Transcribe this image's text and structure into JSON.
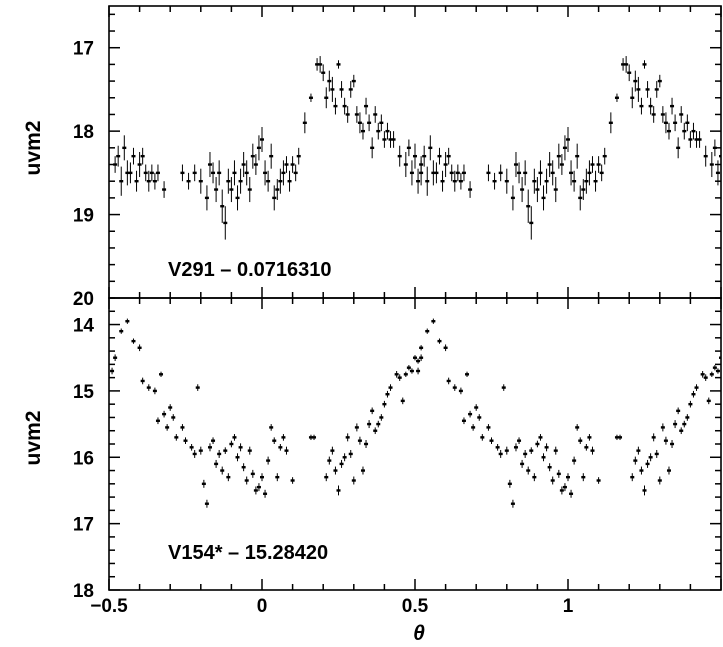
{
  "chart_data": [
    {
      "type": "scatter",
      "panel": "top",
      "title": "",
      "label": "V291 – 0.0716310",
      "xlabel": "θ",
      "ylabel": "uvm2",
      "xlim": [
        -0.5,
        1.5
      ],
      "ylim": [
        20,
        16.5
      ],
      "y_inverted": true,
      "x_ticks": [
        -0.5,
        0,
        0.5,
        1
      ],
      "y_ticks": [
        17,
        18,
        19,
        20
      ],
      "y_tick_labels": [
        "17",
        "18",
        "19",
        "20"
      ],
      "points": [
        [
          -0.48,
          18.4,
          0.2
        ],
        [
          -0.47,
          18.3,
          0.25
        ],
        [
          -0.46,
          18.6,
          0.35
        ],
        [
          -0.45,
          18.2,
          0.3
        ],
        [
          -0.44,
          18.5,
          0.3
        ],
        [
          -0.43,
          18.5,
          0.25
        ],
        [
          -0.42,
          18.3,
          0.2
        ],
        [
          -0.41,
          18.6,
          0.25
        ],
        [
          -0.4,
          18.4,
          0.3
        ],
        [
          -0.39,
          18.3,
          0.2
        ],
        [
          -0.38,
          18.5,
          0.2
        ],
        [
          -0.37,
          18.6,
          0.25
        ],
        [
          -0.36,
          18.5,
          0.2
        ],
        [
          -0.35,
          18.6,
          0.2
        ],
        [
          -0.34,
          18.5,
          0.2
        ],
        [
          -0.32,
          18.7,
          0.2
        ],
        [
          -0.26,
          18.5,
          0.2
        ],
        [
          -0.24,
          18.6,
          0.2
        ],
        [
          -0.22,
          18.5,
          0.2
        ],
        [
          -0.2,
          18.6,
          0.3
        ],
        [
          -0.18,
          18.8,
          0.3
        ],
        [
          -0.17,
          18.4,
          0.3
        ],
        [
          -0.16,
          18.5,
          0.25
        ],
        [
          -0.15,
          18.7,
          0.3
        ],
        [
          -0.14,
          18.5,
          0.3
        ],
        [
          -0.13,
          18.9,
          0.4
        ],
        [
          -0.12,
          19.1,
          0.4
        ],
        [
          -0.11,
          18.6,
          0.3
        ],
        [
          -0.1,
          18.7,
          0.3
        ],
        [
          -0.09,
          18.5,
          0.3
        ],
        [
          -0.08,
          18.8,
          0.3
        ],
        [
          -0.07,
          18.6,
          0.3
        ],
        [
          -0.06,
          18.4,
          0.3
        ],
        [
          -0.05,
          18.5,
          0.3
        ],
        [
          -0.04,
          18.7,
          0.3
        ],
        [
          -0.03,
          18.3,
          0.3
        ],
        [
          -0.02,
          18.4,
          0.25
        ],
        [
          -0.01,
          18.2,
          0.3
        ],
        [
          0.0,
          18.1,
          0.3
        ],
        [
          0.01,
          18.5,
          0.3
        ],
        [
          0.02,
          18.6,
          0.25
        ],
        [
          0.03,
          18.3,
          0.3
        ],
        [
          0.04,
          18.8,
          0.3
        ],
        [
          0.05,
          18.7,
          0.25
        ],
        [
          0.06,
          18.6,
          0.3
        ],
        [
          0.07,
          18.5,
          0.3
        ],
        [
          0.08,
          18.4,
          0.2
        ],
        [
          0.09,
          18.6,
          0.25
        ],
        [
          0.1,
          18.4,
          0.2
        ],
        [
          0.11,
          18.5,
          0.2
        ],
        [
          0.12,
          18.3,
          0.2
        ],
        [
          0.14,
          17.9,
          0.25
        ],
        [
          0.16,
          17.6,
          0.1
        ],
        [
          0.18,
          17.2,
          0.15
        ],
        [
          0.19,
          17.2,
          0.2
        ],
        [
          0.2,
          17.3,
          0.2
        ],
        [
          0.21,
          17.6,
          0.25
        ],
        [
          0.22,
          17.4,
          0.25
        ],
        [
          0.23,
          17.5,
          0.3
        ],
        [
          0.24,
          17.7,
          0.2
        ],
        [
          0.25,
          17.2,
          0.1
        ],
        [
          0.26,
          17.5,
          0.2
        ],
        [
          0.27,
          17.7,
          0.2
        ],
        [
          0.28,
          17.8,
          0.2
        ],
        [
          0.29,
          17.5,
          0.2
        ],
        [
          0.3,
          17.4,
          0.15
        ],
        [
          0.31,
          17.8,
          0.2
        ],
        [
          0.32,
          17.9,
          0.25
        ],
        [
          0.33,
          18.0,
          0.2
        ],
        [
          0.34,
          17.7,
          0.2
        ],
        [
          0.35,
          17.9,
          0.2
        ],
        [
          0.36,
          18.2,
          0.25
        ],
        [
          0.37,
          17.8,
          0.2
        ],
        [
          0.38,
          18.0,
          0.2
        ],
        [
          0.39,
          17.9,
          0.2
        ],
        [
          0.4,
          18.1,
          0.2
        ],
        [
          0.41,
          18.0,
          0.2
        ],
        [
          0.42,
          18.1,
          0.2
        ],
        [
          0.43,
          18.1,
          0.2
        ],
        [
          0.45,
          18.3,
          0.25
        ],
        [
          0.47,
          18.4,
          0.3
        ],
        [
          0.48,
          18.2,
          0.2
        ],
        [
          0.49,
          18.5,
          0.3
        ],
        [
          0.5,
          18.3,
          0.3
        ],
        [
          0.51,
          18.6,
          0.3
        ],
        [
          0.52,
          18.5,
          0.3
        ]
      ]
    },
    {
      "type": "scatter",
      "panel": "bottom",
      "title": "",
      "label": "V154* – 15.28420",
      "xlabel": "θ",
      "ylabel": "uvm2",
      "xlim": [
        -0.5,
        1.5
      ],
      "ylim": [
        18,
        13.6
      ],
      "y_inverted": true,
      "x_ticks": [
        -0.5,
        0,
        0.5,
        1
      ],
      "x_tick_labels": [
        "−0.5",
        "0",
        "0.5",
        "1"
      ],
      "y_ticks": [
        14,
        15,
        16,
        17,
        18
      ],
      "y_tick_labels": [
        "14",
        "15",
        "16",
        "17",
        "18"
      ],
      "points": [
        [
          -0.49,
          14.7,
          0.1
        ],
        [
          -0.48,
          14.5,
          0.1
        ],
        [
          -0.46,
          14.1,
          0.08
        ],
        [
          -0.44,
          13.95,
          0.08
        ],
        [
          -0.42,
          14.25,
          0.08
        ],
        [
          -0.4,
          14.35,
          0.1
        ],
        [
          -0.39,
          14.85,
          0.1
        ],
        [
          -0.37,
          14.95,
          0.1
        ],
        [
          -0.35,
          15.0,
          0.1
        ],
        [
          -0.34,
          15.45,
          0.1
        ],
        [
          -0.33,
          14.75,
          0.08
        ],
        [
          -0.32,
          15.35,
          0.1
        ],
        [
          -0.31,
          15.55,
          0.1
        ],
        [
          -0.3,
          15.25,
          0.1
        ],
        [
          -0.29,
          15.4,
          0.1
        ],
        [
          -0.28,
          15.7,
          0.1
        ],
        [
          -0.26,
          15.55,
          0.1
        ],
        [
          -0.25,
          15.75,
          0.1
        ],
        [
          -0.23,
          15.85,
          0.1
        ],
        [
          -0.22,
          15.95,
          0.12
        ],
        [
          -0.21,
          14.95,
          0.1
        ],
        [
          -0.2,
          15.9,
          0.12
        ],
        [
          -0.19,
          16.4,
          0.12
        ],
        [
          -0.18,
          16.7,
          0.12
        ],
        [
          -0.17,
          15.85,
          0.12
        ],
        [
          -0.16,
          15.75,
          0.1
        ],
        [
          -0.15,
          16.1,
          0.12
        ],
        [
          -0.14,
          15.95,
          0.12
        ],
        [
          -0.13,
          16.2,
          0.12
        ],
        [
          -0.12,
          15.9,
          0.1
        ],
        [
          -0.11,
          16.3,
          0.12
        ],
        [
          -0.1,
          15.8,
          0.1
        ],
        [
          -0.09,
          15.7,
          0.1
        ],
        [
          -0.08,
          16.0,
          0.12
        ],
        [
          -0.07,
          15.85,
          0.12
        ],
        [
          -0.06,
          16.15,
          0.12
        ],
        [
          -0.05,
          16.35,
          0.12
        ],
        [
          -0.04,
          15.9,
          0.12
        ],
        [
          -0.03,
          16.25,
          0.12
        ],
        [
          -0.02,
          16.5,
          0.12
        ],
        [
          -0.01,
          16.45,
          0.12
        ],
        [
          0.0,
          16.3,
          0.12
        ],
        [
          0.01,
          16.55,
          0.12
        ],
        [
          0.02,
          16.05,
          0.12
        ],
        [
          0.03,
          15.55,
          0.1
        ],
        [
          0.04,
          15.75,
          0.1
        ],
        [
          0.05,
          16.3,
          0.12
        ],
        [
          0.06,
          15.85,
          0.1
        ],
        [
          0.07,
          15.7,
          0.1
        ],
        [
          0.08,
          15.9,
          0.12
        ],
        [
          0.1,
          16.35,
          0.1
        ],
        [
          0.16,
          15.7,
          0.08
        ],
        [
          0.17,
          15.7,
          0.08
        ],
        [
          0.21,
          16.3,
          0.12
        ],
        [
          0.22,
          16.05,
          0.12
        ],
        [
          0.23,
          15.9,
          0.12
        ],
        [
          0.24,
          16.2,
          0.12
        ],
        [
          0.25,
          16.5,
          0.15
        ],
        [
          0.26,
          16.1,
          0.12
        ],
        [
          0.27,
          16.0,
          0.12
        ],
        [
          0.28,
          15.7,
          0.12
        ],
        [
          0.29,
          15.95,
          0.12
        ],
        [
          0.3,
          16.35,
          0.12
        ],
        [
          0.31,
          15.55,
          0.12
        ],
        [
          0.32,
          15.75,
          0.12
        ],
        [
          0.33,
          16.2,
          0.12
        ],
        [
          0.34,
          15.8,
          0.12
        ],
        [
          0.35,
          15.5,
          0.12
        ],
        [
          0.36,
          15.3,
          0.1
        ],
        [
          0.37,
          15.6,
          0.1
        ],
        [
          0.38,
          15.5,
          0.1
        ],
        [
          0.39,
          15.4,
          0.1
        ],
        [
          0.4,
          15.2,
          0.1
        ],
        [
          0.41,
          15.05,
          0.1
        ],
        [
          0.42,
          14.95,
          0.1
        ],
        [
          0.44,
          14.75,
          0.1
        ],
        [
          0.45,
          14.8,
          0.1
        ],
        [
          0.46,
          15.15,
          0.1
        ],
        [
          0.47,
          14.75,
          0.08
        ],
        [
          0.48,
          14.65,
          0.08
        ],
        [
          0.49,
          14.7,
          0.08
        ],
        [
          0.5,
          14.5,
          0.08
        ],
        [
          0.51,
          14.55,
          0.08
        ],
        [
          0.52,
          14.35,
          0.08
        ]
      ]
    }
  ]
}
